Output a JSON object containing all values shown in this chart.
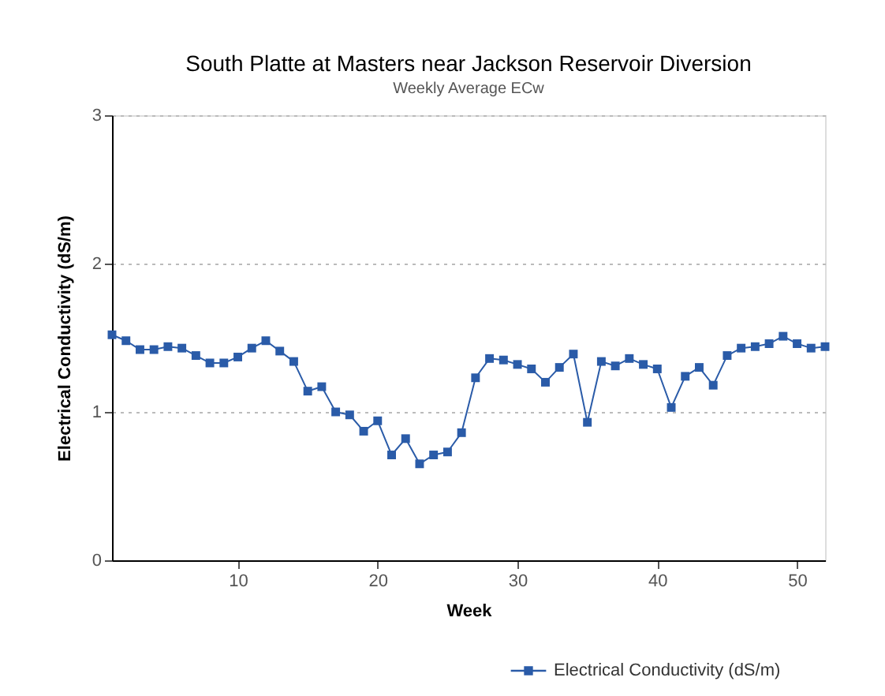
{
  "chart_data": {
    "type": "line",
    "title": "South Platte at Masters near Jackson Reservoir Diversion",
    "subtitle": "Weekly Average ECw",
    "xlabel": "Week",
    "ylabel": "Electrical Conductivity (dS/m)",
    "x": [
      1,
      2,
      3,
      4,
      5,
      6,
      7,
      8,
      9,
      10,
      11,
      12,
      13,
      14,
      15,
      16,
      17,
      18,
      19,
      20,
      21,
      22,
      23,
      24,
      25,
      26,
      27,
      28,
      29,
      30,
      31,
      32,
      33,
      34,
      35,
      36,
      37,
      38,
      39,
      40,
      41,
      42,
      43,
      44,
      45,
      46,
      47,
      48,
      49,
      50,
      51,
      52
    ],
    "series": [
      {
        "name": "Electrical Conductivity (dS/m)",
        "color": "#2a5ba8",
        "values": [
          1.52,
          1.48,
          1.42,
          1.42,
          1.44,
          1.43,
          1.38,
          1.33,
          1.33,
          1.37,
          1.43,
          1.48,
          1.41,
          1.34,
          1.14,
          1.17,
          1.0,
          0.98,
          0.87,
          0.94,
          0.71,
          0.82,
          0.65,
          0.71,
          0.73,
          0.86,
          1.23,
          1.36,
          1.35,
          1.32,
          1.29,
          1.2,
          1.3,
          1.39,
          0.93,
          1.34,
          1.31,
          1.36,
          1.32,
          1.29,
          1.03,
          1.24,
          1.3,
          1.18,
          1.38,
          1.43,
          1.44,
          1.46,
          1.51,
          1.46,
          1.43,
          1.44
        ]
      }
    ],
    "xlim": [
      1,
      52
    ],
    "xticks": [
      10,
      20,
      30,
      40,
      50
    ],
    "ylim": [
      0,
      3
    ],
    "yticks": [
      0,
      1,
      2,
      3
    ],
    "grid": "y",
    "legend": "bottom right",
    "marker": "square",
    "line_style": "solid"
  }
}
